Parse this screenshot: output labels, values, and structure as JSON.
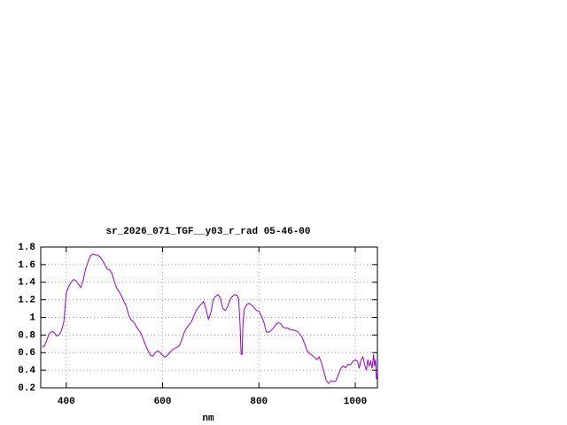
{
  "chart_data": {
    "type": "line",
    "title": "sr_2026_071_TGF__y03_r_rad 05-46-00",
    "x_label": "nm",
    "color": "#9400d3",
    "grid": true,
    "xlim": [
      347,
      1046
    ],
    "ylim": [
      0.2,
      1.8
    ],
    "xticks": [
      400,
      600,
      800,
      1000
    ],
    "yticks": [
      0.2,
      0.4,
      0.6,
      0.8,
      1,
      1.2,
      1.4,
      1.6,
      1.8
    ],
    "x": [
      350,
      355,
      360,
      365,
      370,
      375,
      380,
      385,
      390,
      395,
      400,
      405,
      410,
      415,
      420,
      425,
      430,
      435,
      440,
      445,
      450,
      455,
      460,
      465,
      470,
      475,
      480,
      485,
      490,
      495,
      500,
      505,
      510,
      515,
      520,
      525,
      530,
      535,
      540,
      545,
      550,
      555,
      560,
      565,
      570,
      575,
      580,
      585,
      590,
      595,
      600,
      605,
      610,
      615,
      620,
      625,
      630,
      635,
      640,
      645,
      650,
      655,
      660,
      665,
      670,
      675,
      680,
      685,
      690,
      695,
      700,
      705,
      710,
      715,
      720,
      725,
      730,
      735,
      740,
      745,
      750,
      755,
      758,
      761,
      763,
      765,
      767,
      770,
      775,
      780,
      785,
      790,
      795,
      800,
      805,
      810,
      815,
      820,
      825,
      830,
      835,
      840,
      845,
      850,
      855,
      860,
      865,
      870,
      875,
      880,
      885,
      890,
      895,
      900,
      905,
      910,
      915,
      920,
      925,
      930,
      935,
      940,
      945,
      950,
      955,
      960,
      965,
      970,
      975,
      980,
      985,
      990,
      995,
      1000,
      1005,
      1008,
      1012,
      1016,
      1020,
      1023,
      1026,
      1029,
      1032,
      1035,
      1038,
      1040,
      1042,
      1044,
      1046
    ],
    "values": [
      0.66,
      0.68,
      0.75,
      0.82,
      0.84,
      0.83,
      0.79,
      0.8,
      0.85,
      0.95,
      1.28,
      1.35,
      1.4,
      1.43,
      1.42,
      1.38,
      1.34,
      1.42,
      1.55,
      1.63,
      1.7,
      1.72,
      1.71,
      1.71,
      1.69,
      1.65,
      1.6,
      1.55,
      1.54,
      1.5,
      1.4,
      1.33,
      1.29,
      1.24,
      1.18,
      1.12,
      1.02,
      0.97,
      0.95,
      0.9,
      0.86,
      0.82,
      0.75,
      0.68,
      0.62,
      0.57,
      0.56,
      0.6,
      0.62,
      0.6,
      0.57,
      0.55,
      0.57,
      0.6,
      0.63,
      0.65,
      0.66,
      0.68,
      0.75,
      0.83,
      0.88,
      0.92,
      0.95,
      1.02,
      1.08,
      1.12,
      1.15,
      1.18,
      1.1,
      0.98,
      1.05,
      1.2,
      1.24,
      1.26,
      1.22,
      1.1,
      1.08,
      1.12,
      1.2,
      1.24,
      1.26,
      1.25,
      1.2,
      0.9,
      0.58,
      0.58,
      0.95,
      1.1,
      1.15,
      1.16,
      1.14,
      1.11,
      1.08,
      1.07,
      1.02,
      0.95,
      0.84,
      0.83,
      0.85,
      0.88,
      0.92,
      0.94,
      0.93,
      0.89,
      0.88,
      0.88,
      0.86,
      0.86,
      0.85,
      0.84,
      0.81,
      0.77,
      0.7,
      0.62,
      0.59,
      0.57,
      0.55,
      0.52,
      0.55,
      0.48,
      0.38,
      0.28,
      0.25,
      0.28,
      0.27,
      0.28,
      0.35,
      0.42,
      0.45,
      0.43,
      0.47,
      0.46,
      0.5,
      0.52,
      0.5,
      0.42,
      0.52,
      0.55,
      0.45,
      0.4,
      0.52,
      0.45,
      0.5,
      0.42,
      0.58,
      0.45,
      0.52,
      0.3,
      0.38
    ]
  }
}
